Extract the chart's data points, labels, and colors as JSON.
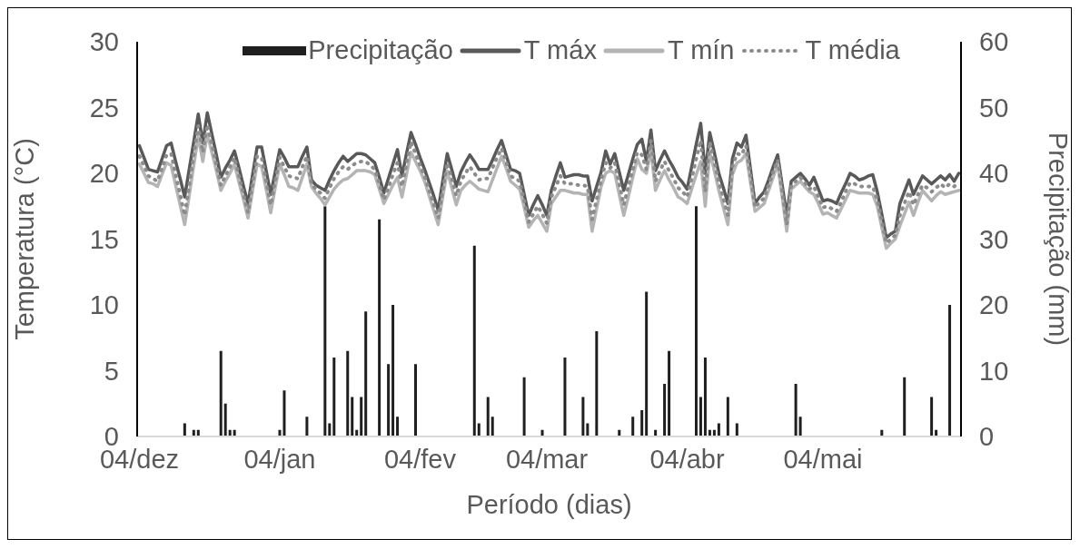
{
  "chart_data": {
    "type": "line",
    "xlabel": "Período (dias)",
    "ylabel": "Temperatura (°C)",
    "y2label": "Precipitação (mm)",
    "categories": [
      "04/dez",
      null,
      null,
      null,
      null,
      null,
      null,
      null,
      null,
      null,
      null,
      null,
      null,
      null,
      null,
      null,
      null,
      null,
      null,
      null,
      null,
      null,
      null,
      null,
      null,
      null,
      null,
      null,
      null,
      null,
      null,
      "04/jan",
      null,
      null,
      null,
      null,
      null,
      null,
      null,
      null,
      null,
      null,
      null,
      null,
      null,
      null,
      null,
      null,
      null,
      null,
      null,
      null,
      null,
      null,
      null,
      null,
      null,
      null,
      null,
      null,
      null,
      null,
      "04/fev",
      null,
      null,
      null,
      null,
      null,
      null,
      null,
      null,
      null,
      null,
      null,
      null,
      null,
      null,
      null,
      null,
      null,
      null,
      null,
      null,
      null,
      null,
      null,
      null,
      null,
      null,
      null,
      "04/mar",
      null,
      null,
      null,
      null,
      null,
      null,
      null,
      null,
      null,
      null,
      null,
      null,
      null,
      null,
      null,
      null,
      null,
      null,
      null,
      null,
      null,
      null,
      null,
      null,
      null,
      null,
      null,
      null,
      null,
      null,
      "04/abr",
      null,
      null,
      null,
      null,
      null,
      null,
      null,
      null,
      null,
      null,
      null,
      null,
      null,
      null,
      null,
      null,
      null,
      null,
      null,
      null,
      null,
      null,
      null,
      null,
      null,
      null,
      null,
      null,
      null,
      "04/mai",
      null,
      null,
      null,
      null,
      null,
      null,
      null,
      null,
      null,
      null,
      null,
      null,
      null,
      null,
      null,
      null,
      null,
      null,
      null,
      null,
      null,
      null,
      null,
      null,
      null,
      null,
      null,
      null,
      null,
      null
    ],
    "ylim": [
      0,
      30
    ],
    "yticks": [
      0,
      5,
      10,
      15,
      20,
      25,
      30
    ],
    "y2lim": [
      0,
      60
    ],
    "y2ticks": [
      0,
      10,
      20,
      30,
      40,
      50,
      60
    ],
    "legend": "top",
    "grid": false,
    "marker": "none",
    "series": [
      {
        "name": "Precipitação",
        "type": "bar",
        "axis": "y2",
        "color": "#1f1f1f",
        "values": [
          0,
          0,
          0,
          0,
          0,
          0,
          0,
          0,
          0,
          0,
          2,
          0,
          1,
          1,
          0,
          0,
          0,
          0,
          13,
          5,
          1,
          1,
          0,
          0,
          0,
          0,
          0,
          0,
          0,
          0,
          0,
          1,
          7,
          0,
          0,
          0,
          0,
          3,
          0,
          0,
          0,
          35,
          2,
          12,
          0,
          0,
          13,
          6,
          1,
          6,
          19,
          0,
          0,
          33,
          0,
          11,
          20,
          3,
          0,
          0,
          0,
          11,
          0,
          0,
          0,
          0,
          0,
          0,
          0,
          0,
          0,
          0,
          0,
          0,
          29,
          2,
          0,
          6,
          3,
          0,
          0,
          0,
          0,
          0,
          0,
          9,
          0,
          0,
          0,
          1,
          0,
          0,
          0,
          0,
          12,
          0,
          0,
          0,
          6,
          2,
          0,
          16,
          0,
          0,
          0,
          0,
          1,
          0,
          0,
          3,
          0,
          4,
          22,
          0,
          1,
          0,
          8,
          13,
          0,
          0,
          0,
          0,
          0,
          35,
          6,
          12,
          1,
          1,
          2,
          0,
          6,
          0,
          2,
          0,
          0,
          0,
          0,
          0,
          0,
          0,
          0,
          0,
          0,
          0,
          0,
          8,
          3,
          0,
          0,
          0,
          0,
          0,
          0,
          0,
          0,
          0,
          0,
          0,
          0,
          0,
          0,
          0,
          0,
          0,
          1,
          0,
          0,
          0,
          0,
          9,
          0,
          0,
          0,
          0,
          0,
          6,
          1,
          0,
          0,
          20,
          0,
          0
        ]
      },
      {
        "name": "T máx",
        "color": "#595959",
        "line_style": "solid",
        "values": [
          22.1,
          21.2,
          20.3,
          20.2,
          20.1,
          21.1,
          22.1,
          22.3,
          20.9,
          19.6,
          18.2,
          20.3,
          22.4,
          24.5,
          22.3,
          24.6,
          23.0,
          21.4,
          19.7,
          20.4,
          21.0,
          21.7,
          20.4,
          19.0,
          17.7,
          19.9,
          22.0,
          22.0,
          20.2,
          18.4,
          20.1,
          21.8,
          21.2,
          20.5,
          20.5,
          20.5,
          21.3,
          22.0,
          19.5,
          19.1,
          18.9,
          18.7,
          19.5,
          20.2,
          20.8,
          21.3,
          20.9,
          21.2,
          21.5,
          21.5,
          21.4,
          21.1,
          20.8,
          19.7,
          18.5,
          19.6,
          20.7,
          21.8,
          19.8,
          21.5,
          23.1,
          22.2,
          21.2,
          20.3,
          19.3,
          18.3,
          17.2,
          19.4,
          21.5,
          20.3,
          19.0,
          20.1,
          20.8,
          21.4,
          20.9,
          20.3,
          20.3,
          20.3,
          21.0,
          21.8,
          22.5,
          21.4,
          20.3,
          20.2,
          20.0,
          18.4,
          16.8,
          17.6,
          18.3,
          17.6,
          16.8,
          18.7,
          19.8,
          20.8,
          19.7,
          19.8,
          19.9,
          19.9,
          19.8,
          19.8,
          17.9,
          19.0,
          20.1,
          21.7,
          20.7,
          21.5,
          20.1,
          18.7,
          19.9,
          21.1,
          22.2,
          22.6,
          20.9,
          23.3,
          20.2,
          21.0,
          21.7,
          21.0,
          20.4,
          19.7,
          19.3,
          18.8,
          20.5,
          22.2,
          23.8,
          20.0,
          23.1,
          21.6,
          20.0,
          18.9,
          17.7,
          21.1,
          22.3,
          22.0,
          22.9,
          20.3,
          17.7,
          18.2,
          18.6,
          19.5,
          20.5,
          21.4,
          19.1,
          16.8,
          19.4,
          19.7,
          20.0,
          19.6,
          19.1,
          19.7,
          18.8,
          17.9,
          18.0,
          17.9,
          17.7,
          18.5,
          19.2,
          20.0,
          19.8,
          19.5,
          19.6,
          19.8,
          19.9,
          18.6,
          16.9,
          15.1,
          15.4,
          15.6,
          17.7,
          18.6,
          19.5,
          18.4,
          19.1,
          19.8,
          19.5,
          19.2,
          19.5,
          19.8,
          19.5,
          19.9,
          19.4,
          20.0
        ]
      },
      {
        "name": "T mín",
        "color": "#b4b4b4",
        "line_style": "solid",
        "values": [
          20.7,
          20.0,
          19.3,
          19.2,
          19.0,
          19.9,
          20.8,
          20.6,
          19.1,
          17.6,
          16.1,
          18.3,
          20.6,
          22.8,
          20.9,
          23.0,
          21.6,
          20.2,
          18.7,
          19.4,
          20.0,
          20.7,
          19.3,
          18.0,
          16.6,
          18.7,
          20.7,
          20.5,
          18.8,
          17.0,
          18.9,
          20.7,
          19.9,
          19.0,
          18.9,
          18.7,
          19.7,
          20.7,
          19.0,
          18.5,
          18.1,
          17.6,
          18.2,
          18.8,
          19.2,
          19.5,
          19.6,
          19.9,
          20.2,
          20.2,
          20.2,
          20.1,
          19.9,
          18.8,
          17.7,
          18.4,
          19.1,
          19.7,
          18.2,
          19.9,
          21.6,
          20.9,
          20.2,
          19.4,
          18.3,
          17.2,
          16.1,
          18.2,
          20.2,
          18.9,
          17.6,
          18.7,
          19.1,
          19.4,
          19.1,
          18.8,
          18.7,
          18.6,
          19.5,
          20.4,
          21.3,
          20.4,
          19.4,
          19.1,
          18.8,
          17.4,
          15.9,
          16.4,
          16.8,
          16.2,
          15.6,
          17.7,
          18.2,
          18.7,
          18.7,
          18.6,
          18.5,
          18.5,
          18.4,
          18.4,
          15.6,
          17.3,
          19.0,
          20.0,
          20.2,
          20.0,
          18.4,
          16.8,
          18.2,
          19.7,
          21.1,
          20.3,
          20.0,
          21.8,
          18.7,
          19.5,
          20.2,
          19.5,
          18.9,
          18.2,
          18.0,
          17.7,
          18.8,
          19.9,
          20.9,
          17.5,
          21.6,
          20.2,
          18.7,
          17.4,
          16.1,
          19.9,
          20.8,
          21.0,
          21.5,
          19.3,
          17.1,
          17.4,
          17.7,
          18.7,
          19.7,
          20.7,
          18.2,
          15.6,
          18.8,
          19.1,
          19.4,
          19.0,
          18.6,
          18.4,
          17.7,
          16.9,
          17.0,
          16.8,
          16.6,
          17.3,
          18.0,
          18.7,
          18.6,
          18.5,
          18.5,
          18.5,
          18.4,
          17.5,
          15.9,
          14.3,
          14.7,
          15.0,
          16.0,
          16.9,
          17.8,
          16.8,
          17.8,
          18.7,
          18.3,
          17.9,
          18.3,
          18.6,
          18.4,
          18.5,
          18.6,
          18.7
        ]
      },
      {
        "name": "T média",
        "color": "#8c8c8c",
        "line_style": "dotted",
        "values": [
          21.3,
          20.6,
          19.8,
          19.6,
          19.4,
          20.4,
          21.4,
          21.5,
          19.9,
          18.4,
          16.8,
          19.1,
          21.4,
          23.6,
          21.6,
          23.7,
          22.2,
          20.7,
          19.1,
          19.8,
          20.5,
          21.2,
          19.8,
          18.4,
          17.0,
          19.2,
          21.3,
          21.2,
          19.4,
          17.6,
          19.4,
          21.2,
          20.5,
          19.8,
          19.7,
          19.6,
          20.5,
          21.3,
          19.2,
          18.8,
          18.5,
          18.1,
          18.9,
          19.6,
          20.1,
          20.5,
          20.3,
          20.6,
          20.8,
          20.9,
          20.9,
          20.6,
          20.3,
          19.2,
          18.0,
          18.9,
          19.9,
          20.8,
          19.0,
          20.7,
          22.4,
          21.5,
          20.6,
          19.8,
          18.7,
          17.7,
          16.6,
          18.7,
          20.8,
          19.6,
          18.3,
          19.4,
          20.0,
          20.5,
          20.0,
          19.5,
          19.6,
          19.6,
          20.4,
          21.2,
          21.9,
          20.9,
          19.8,
          19.6,
          19.4,
          17.9,
          16.3,
          16.9,
          17.5,
          16.9,
          16.2,
          18.2,
          19.0,
          19.8,
          19.2,
          19.2,
          19.2,
          19.1,
          19.1,
          19.0,
          16.5,
          18.0,
          19.5,
          20.8,
          20.4,
          20.8,
          19.2,
          17.6,
          19.0,
          20.3,
          21.6,
          21.4,
          20.3,
          22.5,
          19.4,
          20.2,
          20.9,
          20.2,
          19.6,
          18.9,
          18.6,
          18.2,
          19.6,
          21.1,
          22.5,
          18.6,
          22.4,
          20.9,
          19.3,
          18.1,
          16.8,
          20.5,
          21.5,
          21.4,
          22.1,
          19.8,
          17.4,
          17.8,
          18.1,
          19.1,
          20.1,
          21.0,
          18.6,
          16.1,
          19.0,
          19.4,
          19.7,
          19.3,
          18.8,
          19.0,
          18.2,
          17.4,
          17.5,
          17.3,
          17.1,
          17.8,
          18.6,
          19.3,
          19.2,
          19.0,
          19.0,
          19.0,
          19.0,
          18.0,
          16.4,
          14.7,
          15.0,
          15.3,
          16.8,
          17.7,
          18.6,
          17.6,
          18.4,
          19.1,
          18.9,
          18.6,
          18.9,
          19.2,
          18.9,
          19.2,
          19.0,
          19.3
        ]
      }
    ]
  }
}
